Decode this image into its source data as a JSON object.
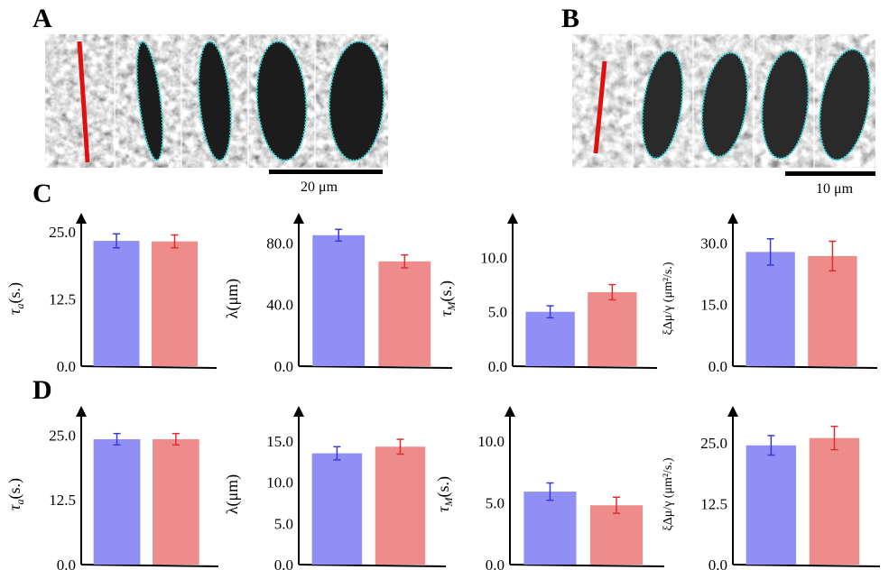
{
  "figure": {
    "panels": {
      "A": {
        "letter": "A",
        "scale_text": "20 μm"
      },
      "B": {
        "letter": "B",
        "scale_text": "10 μm"
      },
      "C": {
        "letter": "C"
      },
      "D": {
        "letter": "D"
      }
    },
    "colors": {
      "blue": "#8f8ff5",
      "red": "#ee8c8c",
      "blue_err": "#3a3ad0",
      "red_err": "#d83030",
      "outline": "#36d9d9",
      "marker": "#dd1111"
    }
  },
  "chart_data": [
    {
      "id": "C1",
      "panel": "C",
      "type": "bar",
      "ylabel": "τa(s.)",
      "ylim": [
        0,
        27.5
      ],
      "ticks": [
        0,
        12.5,
        25
      ],
      "tick_labels": [
        "0.0",
        "12.5",
        "25.0"
      ],
      "series": [
        {
          "name": "blue",
          "values": [
            23.3
          ],
          "err": [
            1.3
          ]
        },
        {
          "name": "red",
          "values": [
            23.2
          ],
          "err": [
            1.2
          ]
        }
      ]
    },
    {
      "id": "C2",
      "panel": "C",
      "type": "bar",
      "ylabel": "λ(μm)",
      "ylim": [
        0,
        96
      ],
      "ticks": [
        0,
        40,
        80
      ],
      "tick_labels": [
        "0.0",
        "40.0",
        "80.0"
      ],
      "series": [
        {
          "name": "blue",
          "values": [
            85
          ],
          "err": [
            3.8
          ]
        },
        {
          "name": "red",
          "values": [
            68
          ],
          "err": [
            4.2
          ]
        }
      ]
    },
    {
      "id": "C3",
      "panel": "C",
      "type": "bar",
      "ylabel": "τM(s.)",
      "ylim": [
        0,
        13.6
      ],
      "ticks": [
        0,
        5,
        10
      ],
      "tick_labels": [
        "0.0",
        "5.0",
        "10.0"
      ],
      "series": [
        {
          "name": "blue",
          "values": [
            5.0
          ],
          "err": [
            0.55
          ]
        },
        {
          "name": "red",
          "values": [
            6.8
          ],
          "err": [
            0.7
          ]
        }
      ]
    },
    {
      "id": "C4",
      "panel": "C",
      "type": "bar",
      "ylabel": "ξΔμ/γ (μm²/s.)",
      "ylim": [
        0,
        36
      ],
      "ticks": [
        0,
        15,
        30
      ],
      "tick_labels": [
        "0.0",
        "15.0",
        "30.0"
      ],
      "series": [
        {
          "name": "blue",
          "values": [
            27.8
          ],
          "err": [
            3.2
          ]
        },
        {
          "name": "red",
          "values": [
            26.8
          ],
          "err": [
            3.6
          ]
        }
      ]
    },
    {
      "id": "D1",
      "panel": "D",
      "type": "bar",
      "ylabel": "τa(s.)",
      "ylim": [
        0,
        29.6
      ],
      "ticks": [
        0,
        12.5,
        25
      ],
      "tick_labels": [
        "0.0",
        "12.5",
        "25.0"
      ],
      "series": [
        {
          "name": "blue",
          "values": [
            24.2
          ],
          "err": [
            1.1
          ]
        },
        {
          "name": "red",
          "values": [
            24.2
          ],
          "err": [
            1.1
          ]
        }
      ]
    },
    {
      "id": "D2",
      "panel": "D",
      "type": "bar",
      "ylabel": "λ(μm)",
      "ylim": [
        0,
        18.6
      ],
      "ticks": [
        0,
        5,
        10,
        15
      ],
      "tick_labels": [
        "0.0",
        "5.0",
        "10.0",
        "15.0"
      ],
      "series": [
        {
          "name": "blue",
          "values": [
            13.5
          ],
          "err": [
            0.8
          ]
        },
        {
          "name": "red",
          "values": [
            14.3
          ],
          "err": [
            0.9
          ]
        }
      ]
    },
    {
      "id": "D3",
      "panel": "D",
      "type": "bar",
      "ylabel": "τM(s.)",
      "ylim": [
        0,
        12.4
      ],
      "ticks": [
        0,
        5,
        10
      ],
      "tick_labels": [
        "0.0",
        "5.0",
        "10.0"
      ],
      "series": [
        {
          "name": "blue",
          "values": [
            5.9
          ],
          "err": [
            0.7
          ]
        },
        {
          "name": "red",
          "values": [
            4.8
          ],
          "err": [
            0.65
          ]
        }
      ]
    },
    {
      "id": "D4",
      "panel": "D",
      "type": "bar",
      "ylabel": "ξΔμ/γ (μm²/s.)",
      "ylim": [
        0,
        31.5
      ],
      "ticks": [
        0,
        12.5,
        25
      ],
      "tick_labels": [
        "0.0",
        "12.5",
        "25.0"
      ],
      "series": [
        {
          "name": "blue",
          "values": [
            24.5
          ],
          "err": [
            2.0
          ]
        },
        {
          "name": "red",
          "values": [
            26.0
          ],
          "err": [
            2.4
          ]
        }
      ]
    }
  ]
}
